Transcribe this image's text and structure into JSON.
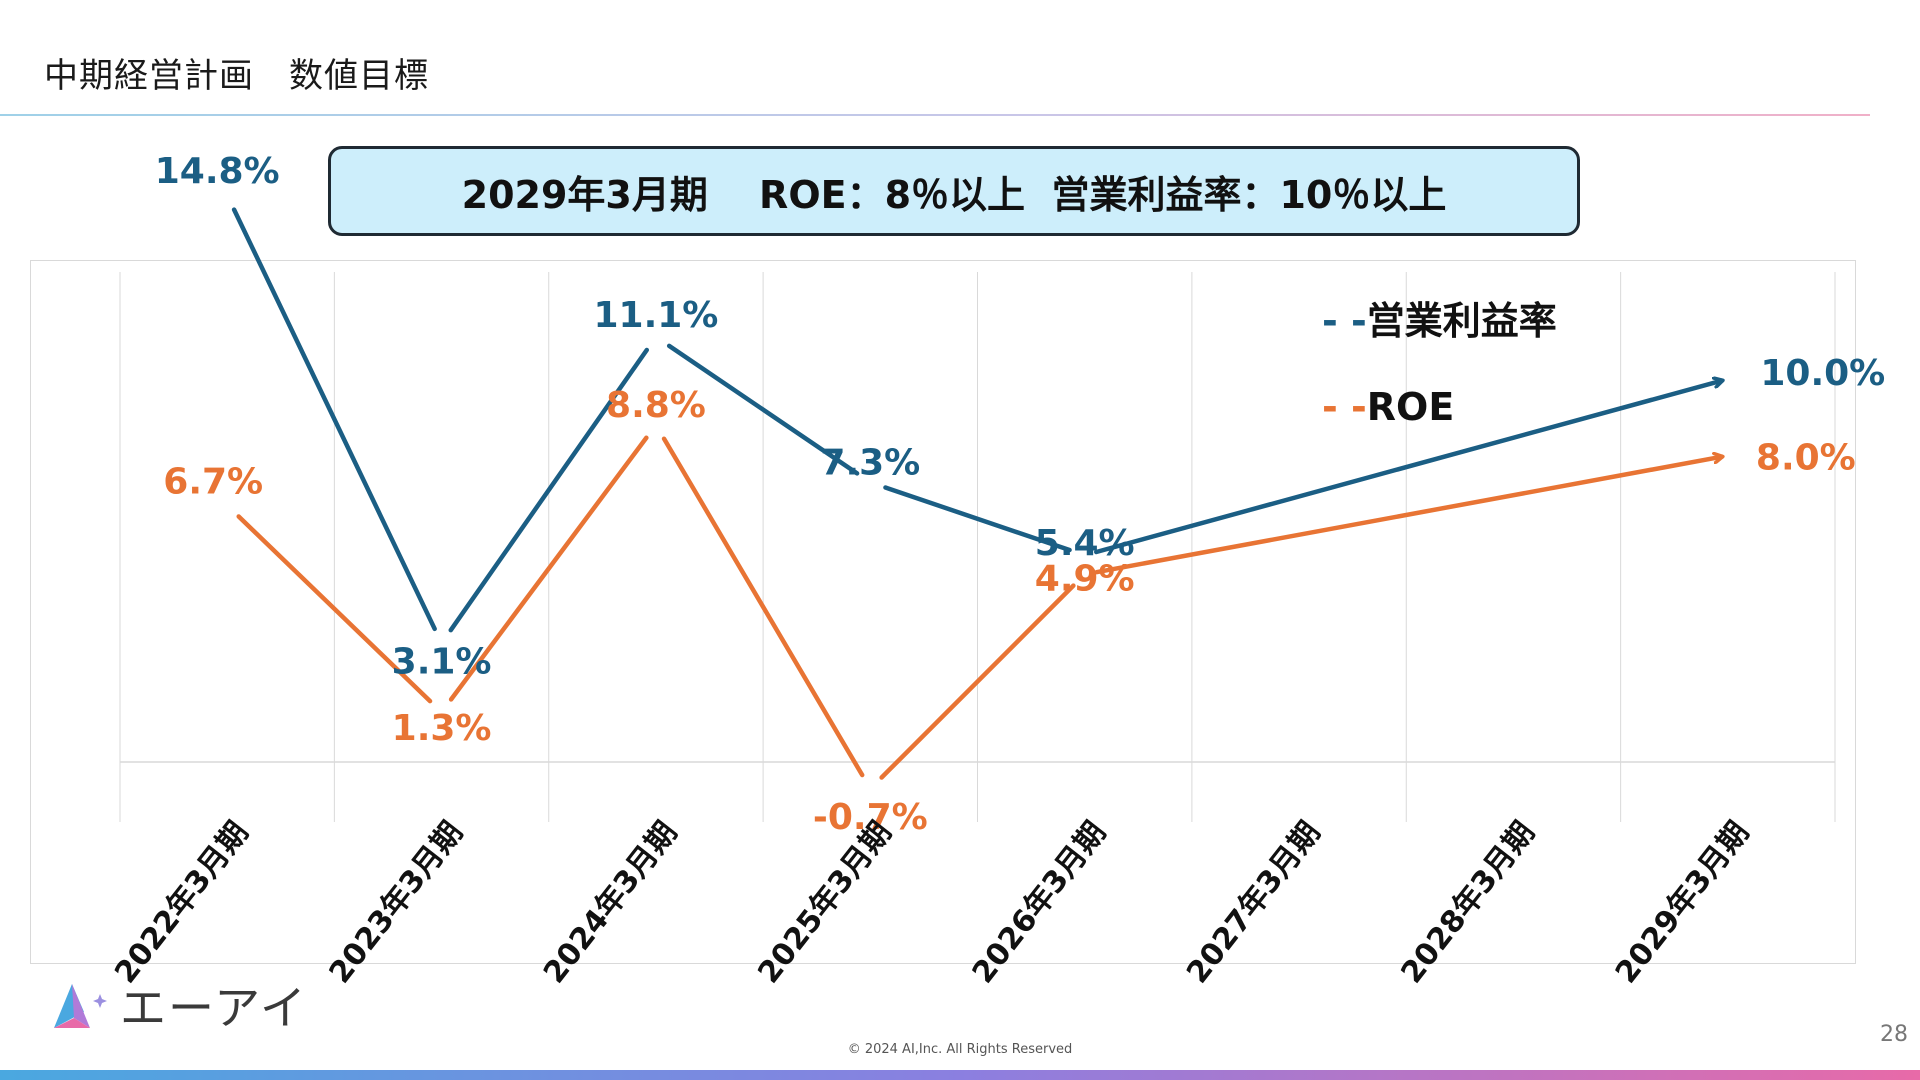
{
  "header": {
    "title": "中期経営計画　数値目標"
  },
  "target_box": {
    "text": "2029年3月期　 ROE：8％以上  営業利益率：10％以上"
  },
  "colors": {
    "operating_margin": "#1b5e84",
    "roe": "#e87434",
    "gridline": "#d9d9d9"
  },
  "chart_data": {
    "type": "line",
    "title": "",
    "xlabel": "",
    "ylabel": "",
    "categories": [
      "2022年3月期",
      "2023年3月期",
      "2024年3月期",
      "2025年3月期",
      "2026年3月期",
      "2027年3月期",
      "2028年3月期",
      "2029年3月期"
    ],
    "grid": "vertical",
    "legend_position": "top-right",
    "series": [
      {
        "name": "営業利益率",
        "legend_label": "- -営業利益率",
        "color": "#1b5e84",
        "values": [
          14.8,
          3.1,
          11.1,
          7.3,
          5.4,
          null,
          null,
          10.0
        ],
        "labels": [
          "14.8%",
          "3.1%",
          "11.1%",
          "7.3%",
          "5.4%",
          null,
          null,
          "10.0%"
        ]
      },
      {
        "name": "ROE",
        "legend_label": "- -ROE",
        "color": "#e87434",
        "values": [
          6.7,
          1.3,
          8.8,
          -0.7,
          4.9,
          null,
          null,
          8.0
        ],
        "labels": [
          "6.7%",
          "1.3%",
          "8.8%",
          "-0.7%",
          "4.9%",
          null,
          null,
          "8.0%"
        ]
      }
    ],
    "annotations": [
      {
        "type": "arrow",
        "from": "2026年3月期",
        "to": "2029年3月期",
        "series": "営業利益率"
      },
      {
        "type": "arrow",
        "from": "2026年3月期",
        "to": "2029年3月期",
        "series": "ROE"
      }
    ]
  },
  "footer": {
    "logo_text": "エーアイ",
    "copyright": "© 2024 AI,Inc. All Rights Reserved",
    "page_number": "28"
  }
}
